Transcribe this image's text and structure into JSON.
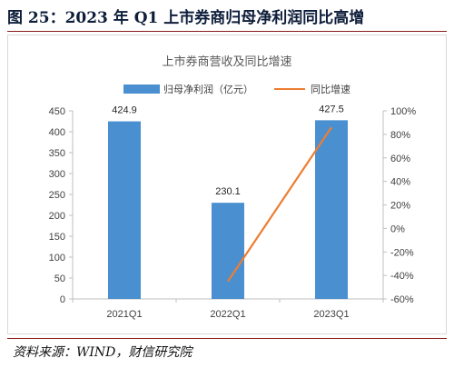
{
  "figure": {
    "title": "图 25：2023 年 Q1 上市券商归母净利润同比高增",
    "source": "资料来源：WIND，财信研究院"
  },
  "chart_data": {
    "type": "bar",
    "title": "上市券商营收及同比增速",
    "categories": [
      "2021Q1",
      "2022Q1",
      "2023Q1"
    ],
    "series": [
      {
        "name": "归母净利润（亿元）",
        "kind": "bar",
        "axis": "left",
        "values": [
          424.9,
          230.1,
          427.5
        ],
        "color": "#4a90d0",
        "data_labels": [
          "424.9",
          "230.1",
          "427.5"
        ]
      },
      {
        "name": "同比增速",
        "kind": "line",
        "axis": "right",
        "values": [
          null,
          -0.45,
          0.86
        ],
        "color": "#ed7d31"
      }
    ],
    "y_left": {
      "min": 0,
      "max": 450,
      "ticks": [
        0,
        50,
        100,
        150,
        200,
        250,
        300,
        350,
        400,
        450
      ],
      "tick_labels": [
        "0",
        "50",
        "100",
        "150",
        "200",
        "250",
        "300",
        "350",
        "400",
        "450"
      ]
    },
    "y_right": {
      "min": -0.6,
      "max": 1.0,
      "ticks": [
        -0.6,
        -0.4,
        -0.2,
        0,
        0.2,
        0.4,
        0.6,
        0.8,
        1.0
      ],
      "tick_labels": [
        "-60%",
        "-40%",
        "-20%",
        "0%",
        "20%",
        "40%",
        "60%",
        "80%",
        "100%"
      ]
    },
    "legend_position": "top",
    "grid": false
  }
}
